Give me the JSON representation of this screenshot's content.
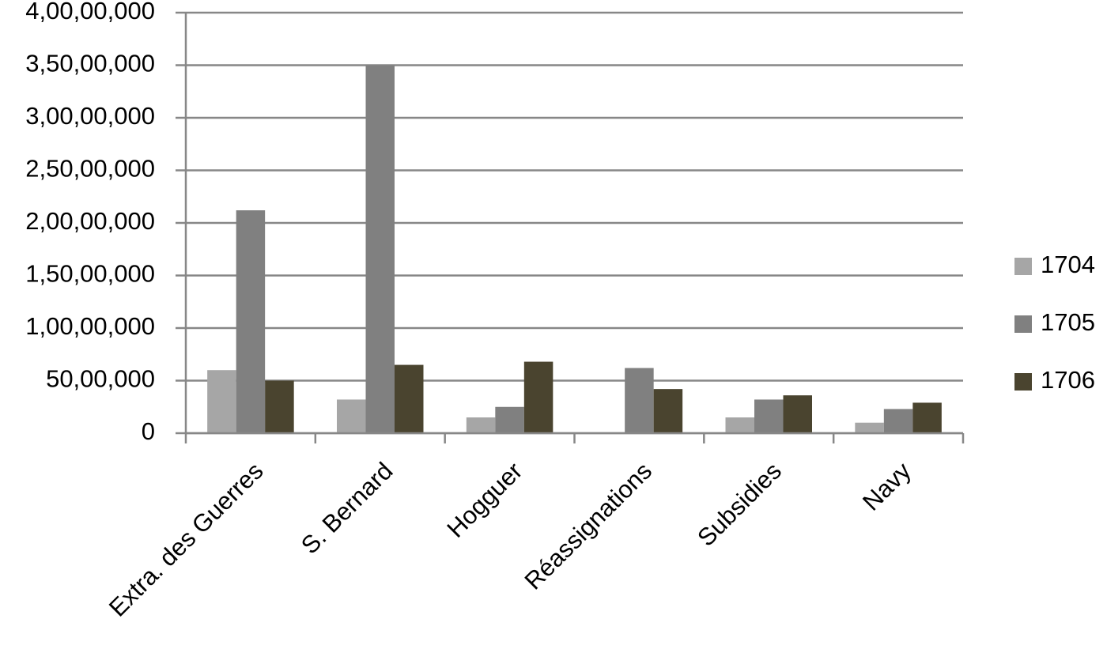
{
  "chart_data": {
    "type": "bar",
    "categories": [
      "Extra. des Guerres",
      "S. Bernard",
      "Hogguer",
      "Réassignations",
      "Subsidies",
      "Navy"
    ],
    "series": [
      {
        "name": "1704",
        "color": "#a6a6a6",
        "values": [
          6000000,
          3200000,
          1500000,
          0,
          1500000,
          1000000
        ]
      },
      {
        "name": "1705",
        "color": "#808080",
        "values": [
          21200000,
          35000000,
          2500000,
          6200000,
          3200000,
          2300000
        ]
      },
      {
        "name": "1706",
        "color": "#4a442f",
        "values": [
          5000000,
          6500000,
          6800000,
          4200000,
          3600000,
          2900000
        ]
      }
    ],
    "ylim": [
      0,
      40000000
    ],
    "yticks": [
      0,
      {
        "value": 5000000,
        "label": "50,00,000"
      },
      {
        "value": 10000000,
        "label": "1,00,00,000"
      },
      {
        "value": 15000000,
        "label": "1,50,00,000"
      },
      {
        "value": 20000000,
        "label": "2,00,00,000"
      },
      {
        "value": 25000000,
        "label": "2,50,00,000"
      },
      {
        "value": 30000000,
        "label": "3,00,00,000"
      },
      {
        "value": 35000000,
        "label": "3,50,00,000"
      },
      {
        "value": 40000000,
        "label": "4,00,00,000"
      }
    ],
    "grid": true,
    "legend": "right"
  }
}
